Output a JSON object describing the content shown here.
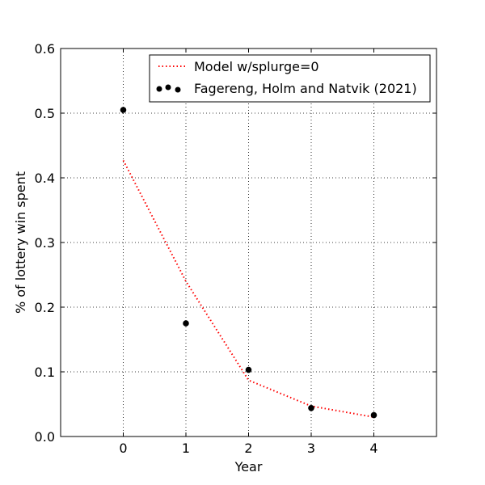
{
  "chart_data": {
    "type": "line",
    "title": "",
    "xlabel": "Year",
    "ylabel": "% of lottery win spent",
    "xlim": [
      -1,
      5
    ],
    "ylim": [
      0,
      0.6
    ],
    "xticks": [
      0,
      1,
      2,
      3,
      4
    ],
    "xtick_labels": [
      "0",
      "1",
      "2",
      "3",
      "4"
    ],
    "yticks": [
      0.0,
      0.1,
      0.2,
      0.3,
      0.4,
      0.5,
      0.6
    ],
    "ytick_labels": [
      "0.0",
      "0.1",
      "0.2",
      "0.3",
      "0.4",
      "0.5",
      "0.6"
    ],
    "grid": true,
    "legend_position": "top-right",
    "series": [
      {
        "name": "Model w/splurge=0",
        "kind": "line",
        "style": "dotted",
        "color": "#ff0000",
        "x": [
          0,
          1,
          2,
          3,
          4
        ],
        "y": [
          0.427,
          0.24,
          0.087,
          0.047,
          0.03
        ]
      },
      {
        "name": "Fagereng, Holm and Natvik (2021)",
        "kind": "scatter",
        "color": "#000000",
        "x": [
          0,
          1,
          2,
          3,
          4
        ],
        "y": [
          0.505,
          0.175,
          0.103,
          0.044,
          0.033
        ]
      }
    ]
  }
}
